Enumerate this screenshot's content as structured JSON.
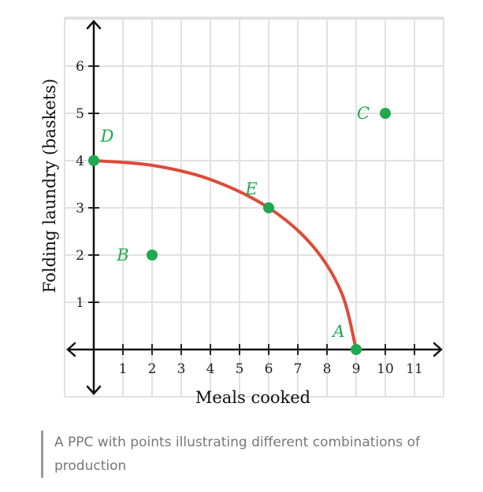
{
  "chart_data": {
    "type": "scatter",
    "title": "",
    "xlabel": "Meals cooked",
    "ylabel": "Folding laundry (baskets)",
    "xlim": [
      -1,
      12
    ],
    "ylim": [
      -1,
      7
    ],
    "x_ticks": [
      "1",
      "2",
      "3",
      "4",
      "5",
      "6",
      "7",
      "8",
      "9",
      "10",
      "11"
    ],
    "y_ticks": [
      "1",
      "2",
      "3",
      "4",
      "5",
      "6"
    ],
    "grid": true,
    "series": [
      {
        "points": [
          {
            "label": "A",
            "x": 9,
            "y": 0
          },
          {
            "label": "B",
            "x": 2,
            "y": 2
          },
          {
            "label": "C",
            "x": 10,
            "y": 5
          },
          {
            "label": "D",
            "x": 0,
            "y": 4
          },
          {
            "label": "E",
            "x": 6,
            "y": 3
          }
        ]
      }
    ],
    "curve": {
      "type": "ppc",
      "points": [
        [
          0,
          4
        ],
        [
          2,
          3.9
        ],
        [
          4,
          3.6
        ],
        [
          6,
          3
        ],
        [
          7.5,
          2.2
        ],
        [
          8.5,
          1.2
        ],
        [
          9,
          0
        ]
      ]
    }
  },
  "caption": "A PPC with points illustrating different combinations of production",
  "colors": {
    "curve": "#dd4b39",
    "points": "#1fa84f",
    "labels": "#1fa84f",
    "grid": "#e1e1e1",
    "axes": "#111111"
  }
}
